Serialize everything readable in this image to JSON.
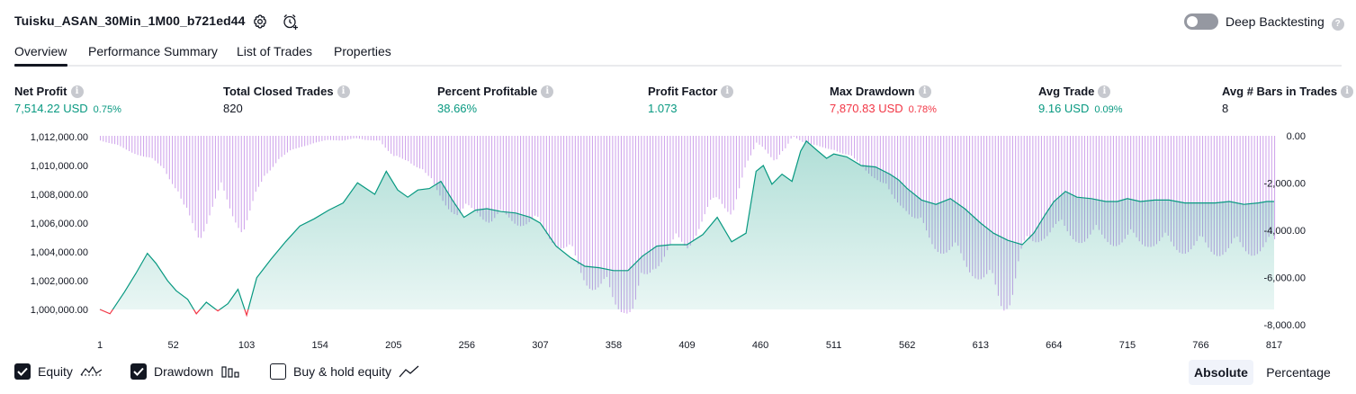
{
  "header": {
    "strategy_title": "Tuisku_ASAN_30Min_1M00_b721ed44",
    "settings_icon": "gear-icon",
    "alert_icon": "alarm-clock-add-icon",
    "deep_backtesting_label": "Deep Backtesting",
    "deep_backtesting_enabled": false,
    "help_icon": "question-circle-icon"
  },
  "tabs": [
    {
      "label": "Overview",
      "active": true
    },
    {
      "label": "Performance Summary",
      "active": false
    },
    {
      "label": "List of Trades",
      "active": false
    },
    {
      "label": "Properties",
      "active": false
    }
  ],
  "stats": [
    {
      "label": "Net Profit",
      "value": "7,514.22 USD",
      "pct": "0.75%",
      "color": "green"
    },
    {
      "label": "Total Closed Trades",
      "value": "820",
      "pct": "",
      "color": "dark"
    },
    {
      "label": "Percent Profitable",
      "value": "38.66%",
      "pct": "",
      "color": "green"
    },
    {
      "label": "Profit Factor",
      "value": "1.073",
      "pct": "",
      "color": "green"
    },
    {
      "label": "Max Drawdown",
      "value": "7,870.83 USD",
      "pct": "0.78%",
      "color": "red"
    },
    {
      "label": "Avg Trade",
      "value": "9.16 USD",
      "pct": "0.09%",
      "color": "green"
    },
    {
      "label": "Avg # Bars in Trades",
      "value": "8",
      "pct": "",
      "color": "dark"
    }
  ],
  "chart_data": {
    "type": "line",
    "x_ticks": [
      "1",
      "52",
      "103",
      "154",
      "205",
      "256",
      "307",
      "358",
      "409",
      "460",
      "511",
      "562",
      "613",
      "664",
      "715",
      "766",
      "817"
    ],
    "y_left_ticks": [
      "1,012,000.00",
      "1,010,000.00",
      "1,008,000.00",
      "1,006,000.00",
      "1,004,000.00",
      "1,002,000.00",
      "1,000,000.00"
    ],
    "y_right_ticks": [
      "0.00",
      "-2,000.00",
      "-4,000.00",
      "-6,000.00",
      "-8,000.00"
    ],
    "ylim_left": [
      999000,
      1012000
    ],
    "ylim_right": [
      -8000,
      0
    ],
    "xlim": [
      1,
      820
    ],
    "series": [
      {
        "name": "Equity",
        "color": "#089981",
        "negative_color": "#f23645",
        "x": [
          1,
          8,
          18,
          26,
          34,
          40,
          48,
          54,
          62,
          68,
          75,
          83,
          90,
          97,
          103,
          110,
          120,
          130,
          140,
          150,
          160,
          170,
          180,
          192,
          200,
          208,
          215,
          222,
          230,
          238,
          246,
          254,
          262,
          270,
          280,
          290,
          300,
          307,
          318,
          328,
          338,
          348,
          358,
          368,
          378,
          388,
          398,
          409,
          420,
          430,
          440,
          450,
          457,
          462,
          468,
          475,
          482,
          488,
          492,
          500,
          506,
          511,
          520,
          530,
          540,
          550,
          556,
          562,
          572,
          582,
          592,
          602,
          613,
          622,
          632,
          642,
          650,
          658,
          664,
          672,
          680,
          690,
          700,
          708,
          715,
          724,
          734,
          744,
          755,
          766,
          776,
          786,
          796,
          806,
          812,
          817
        ],
        "values": [
          1000000,
          999700,
          1001200,
          1002500,
          1003900,
          1003200,
          1002000,
          1001300,
          1000700,
          999700,
          1000500,
          999900,
          1000400,
          1001400,
          999600,
          1002200,
          1003500,
          1004700,
          1005800,
          1006300,
          1006900,
          1007400,
          1008800,
          1008000,
          1009600,
          1008300,
          1007800,
          1008300,
          1008400,
          1008900,
          1007600,
          1006400,
          1006900,
          1007000,
          1006800,
          1006700,
          1006400,
          1006000,
          1004400,
          1003600,
          1003000,
          1002900,
          1002700,
          1002700,
          1003700,
          1004400,
          1004500,
          1004500,
          1005200,
          1006400,
          1004700,
          1005300,
          1009600,
          1010000,
          1008700,
          1009400,
          1008900,
          1011000,
          1011700,
          1011000,
          1010500,
          1010800,
          1010600,
          1010000,
          1009900,
          1009400,
          1009000,
          1008400,
          1007600,
          1007300,
          1007700,
          1007000,
          1006000,
          1005300,
          1004800,
          1004500,
          1005300,
          1006600,
          1007500,
          1008200,
          1007800,
          1007700,
          1007500,
          1007500,
          1007700,
          1007500,
          1007600,
          1007600,
          1007400,
          1007400,
          1007400,
          1007500,
          1007300,
          1007400,
          1007500,
          1007500
        ]
      },
      {
        "name": "Drawdown",
        "color": "#d1a8ec",
        "x": [
          1,
          15,
          30,
          45,
          55,
          60,
          70,
          78,
          85,
          92,
          100,
          110,
          115,
          125,
          140,
          150,
          160,
          170,
          178,
          185,
          195,
          205,
          215,
          225,
          232,
          240,
          250,
          262,
          272,
          285,
          297,
          307,
          318,
          328,
          338,
          348,
          358,
          365,
          372,
          378,
          385,
          395,
          409,
          420,
          430,
          440,
          450,
          457,
          462,
          470,
          477,
          482,
          490,
          500,
          511,
          520,
          530,
          540,
          550,
          560,
          570,
          580,
          590,
          600,
          610,
          620,
          628,
          634,
          640,
          648,
          656,
          664,
          672,
          685,
          700,
          715,
          730,
          745,
          760,
          772,
          785,
          800,
          812,
          817
        ],
        "values": [
          -200,
          -500,
          -900,
          -1400,
          -2500,
          -3600,
          -4500,
          -3300,
          -2400,
          -3400,
          -4200,
          -2700,
          -1800,
          -1000,
          -500,
          -300,
          -200,
          -200,
          -100,
          -200,
          -200,
          -1000,
          -1100,
          -1500,
          -2300,
          -2900,
          -3600,
          -3300,
          -3800,
          -3700,
          -3900,
          -4100,
          -4700,
          -5500,
          -6300,
          -6900,
          -7500,
          -7500,
          -7800,
          -6900,
          -5800,
          -5100,
          -4900,
          -3700,
          -2800,
          -3400,
          -1400,
          -300,
          -500,
          -1200,
          -600,
          0,
          -300,
          -500,
          -600,
          -900,
          -1300,
          -1900,
          -2700,
          -3100,
          -4100,
          -4800,
          -5200,
          -5600,
          -6100,
          -6800,
          -7600,
          -7100,
          -5400,
          -4900,
          -4400,
          -4100,
          -4400,
          -4600,
          -4600,
          -4800,
          -4700,
          -5000,
          -5000,
          -5100,
          -5100,
          -5100,
          -5000,
          -5000
        ]
      }
    ],
    "legend": [
      "Equity",
      "Drawdown",
      "Buy & hold equity"
    ]
  },
  "legend": {
    "equity": {
      "label": "Equity",
      "checked": true,
      "icon": "equity-line-icon"
    },
    "drawdown": {
      "label": "Drawdown",
      "checked": true,
      "icon": "drawdown-bars-icon"
    },
    "buy_hold": {
      "label": "Buy & hold equity",
      "checked": false,
      "icon": "buy-hold-line-icon"
    }
  },
  "view_modes": {
    "absolute": "Absolute",
    "percentage": "Percentage",
    "selected": "Absolute"
  },
  "colors": {
    "green": "#089981",
    "red": "#f23645",
    "drawdown": "#d1a8ec",
    "text": "#131722"
  }
}
